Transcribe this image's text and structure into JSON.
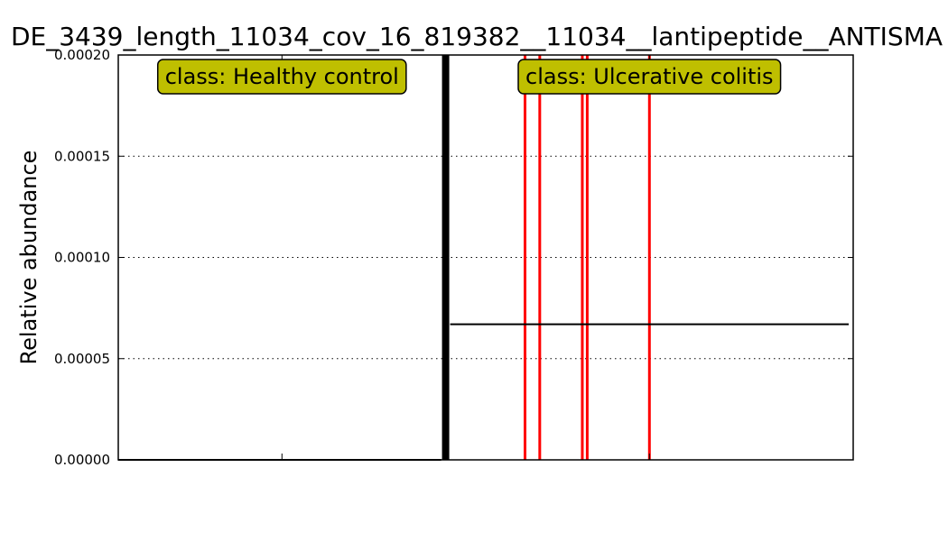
{
  "chart_data": {
    "type": "bar",
    "title": "DE_3439_length_11034_cov_16_819382__11034__lantipeptide__ANTISMA",
    "xlabel": "",
    "ylabel": "Relative abundance",
    "ylim": [
      0,
      0.0002
    ],
    "yticks": [
      "0.00000",
      "0.00005",
      "0.00010",
      "0.00015",
      "0.00020"
    ],
    "grid": true,
    "bar_color": "#ff0000",
    "separator_color": "#000000",
    "classes": [
      {
        "name": "Healthy control",
        "label": "class: Healthy control",
        "label_bg": "#bfbf00",
        "n_samples": 200,
        "nonzero": [],
        "mean": 0
      },
      {
        "name": "Ulcerative colitis",
        "label": "class: Ulcerative colitis",
        "label_bg": "#bfbf00",
        "n_samples": 249,
        "nonzero": [
          {
            "index": 48,
            "value": 0.0002
          },
          {
            "index": 57,
            "value": 0.0002
          },
          {
            "index": 83,
            "value": 0.0002
          },
          {
            "index": 86,
            "value": 0.0002
          },
          {
            "index": 124,
            "value": 0.0002
          }
        ],
        "mean": 6.7e-05
      }
    ]
  }
}
